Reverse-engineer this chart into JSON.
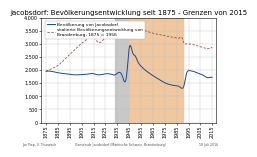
{
  "title": "Jacobsdorf: Bevölkerungsentwicklung seit 1875 - Grenzen von 2015",
  "ylim": [
    0,
    4000
  ],
  "xlim": [
    1871,
    2018
  ],
  "yticks": [
    0,
    500,
    1000,
    1500,
    2000,
    2500,
    3000,
    3500,
    4000
  ],
  "xticks": [
    1875,
    1885,
    1895,
    1905,
    1915,
    1925,
    1935,
    1945,
    1955,
    1965,
    1975,
    1985,
    1995,
    2005,
    2015
  ],
  "nazi_start": 1933,
  "nazi_end": 1945,
  "communist_start": 1945,
  "communist_end": 1990,
  "legend_line1": "Bevölkerung von Jacobsdorf",
  "legend_line2": "skalierte Bevölkerungsentwicklung von\nBrandenburg, 1875 = 1956",
  "background_color": "#ffffff",
  "nazi_color": "#c8c8c8",
  "communist_color": "#f0c8a0",
  "pop_jacobsdorf": [
    [
      1875,
      1956
    ],
    [
      1880,
      1950
    ],
    [
      1885,
      1900
    ],
    [
      1890,
      1870
    ],
    [
      1895,
      1840
    ],
    [
      1900,
      1820
    ],
    [
      1905,
      1830
    ],
    [
      1910,
      1850
    ],
    [
      1914,
      1870
    ],
    [
      1919,
      1820
    ],
    [
      1925,
      1860
    ],
    [
      1930,
      1840
    ],
    [
      1933,
      1820
    ],
    [
      1939,
      1800
    ],
    [
      1943,
      1850
    ],
    [
      1945,
      2820
    ],
    [
      1948,
      2650
    ],
    [
      1950,
      2550
    ],
    [
      1952,
      2350
    ],
    [
      1955,
      2150
    ],
    [
      1960,
      1950
    ],
    [
      1964,
      1820
    ],
    [
      1970,
      1650
    ],
    [
      1975,
      1520
    ],
    [
      1981,
      1430
    ],
    [
      1985,
      1400
    ],
    [
      1987,
      1380
    ],
    [
      1990,
      1310
    ],
    [
      1991,
      1380
    ],
    [
      1993,
      1820
    ],
    [
      1995,
      1980
    ],
    [
      1998,
      1960
    ],
    [
      2000,
      1940
    ],
    [
      2003,
      1880
    ],
    [
      2005,
      1850
    ],
    [
      2008,
      1790
    ],
    [
      2011,
      1710
    ],
    [
      2013,
      1720
    ],
    [
      2015,
      1730
    ]
  ],
  "pop_brandenburg": [
    [
      1875,
      1956
    ],
    [
      1880,
      2060
    ],
    [
      1885,
      2180
    ],
    [
      1890,
      2380
    ],
    [
      1895,
      2600
    ],
    [
      1900,
      2820
    ],
    [
      1905,
      3020
    ],
    [
      1910,
      3200
    ],
    [
      1914,
      3300
    ],
    [
      1919,
      3050
    ],
    [
      1925,
      3250
    ],
    [
      1930,
      3380
    ],
    [
      1933,
      3480
    ],
    [
      1939,
      3680
    ],
    [
      1943,
      3750
    ],
    [
      1945,
      3420
    ],
    [
      1948,
      3520
    ],
    [
      1950,
      3600
    ],
    [
      1952,
      3580
    ],
    [
      1955,
      3550
    ],
    [
      1960,
      3480
    ],
    [
      1964,
      3420
    ],
    [
      1970,
      3360
    ],
    [
      1975,
      3310
    ],
    [
      1981,
      3260
    ],
    [
      1985,
      3230
    ],
    [
      1987,
      3220
    ],
    [
      1990,
      3190
    ],
    [
      1991,
      3050
    ],
    [
      1993,
      3000
    ],
    [
      1995,
      3000
    ],
    [
      1998,
      2980
    ],
    [
      2000,
      2960
    ],
    [
      2003,
      2920
    ],
    [
      2005,
      2890
    ],
    [
      2008,
      2850
    ],
    [
      2011,
      2820
    ],
    [
      2013,
      2830
    ],
    [
      2015,
      2870
    ]
  ],
  "line_color_pop": "#1a4a8a",
  "line_color_brand": "#8b4040",
  "title_fontsize": 5.0,
  "tick_fontsize": 3.5,
  "legend_fontsize": 3.2,
  "footer_left": "Jan Piep, V. Thurwach",
  "footer_center": "Gemeinde Jacobsdorf (Märkische Schweiz, Brandenburg)",
  "footer_right": "18 Juli 2016"
}
